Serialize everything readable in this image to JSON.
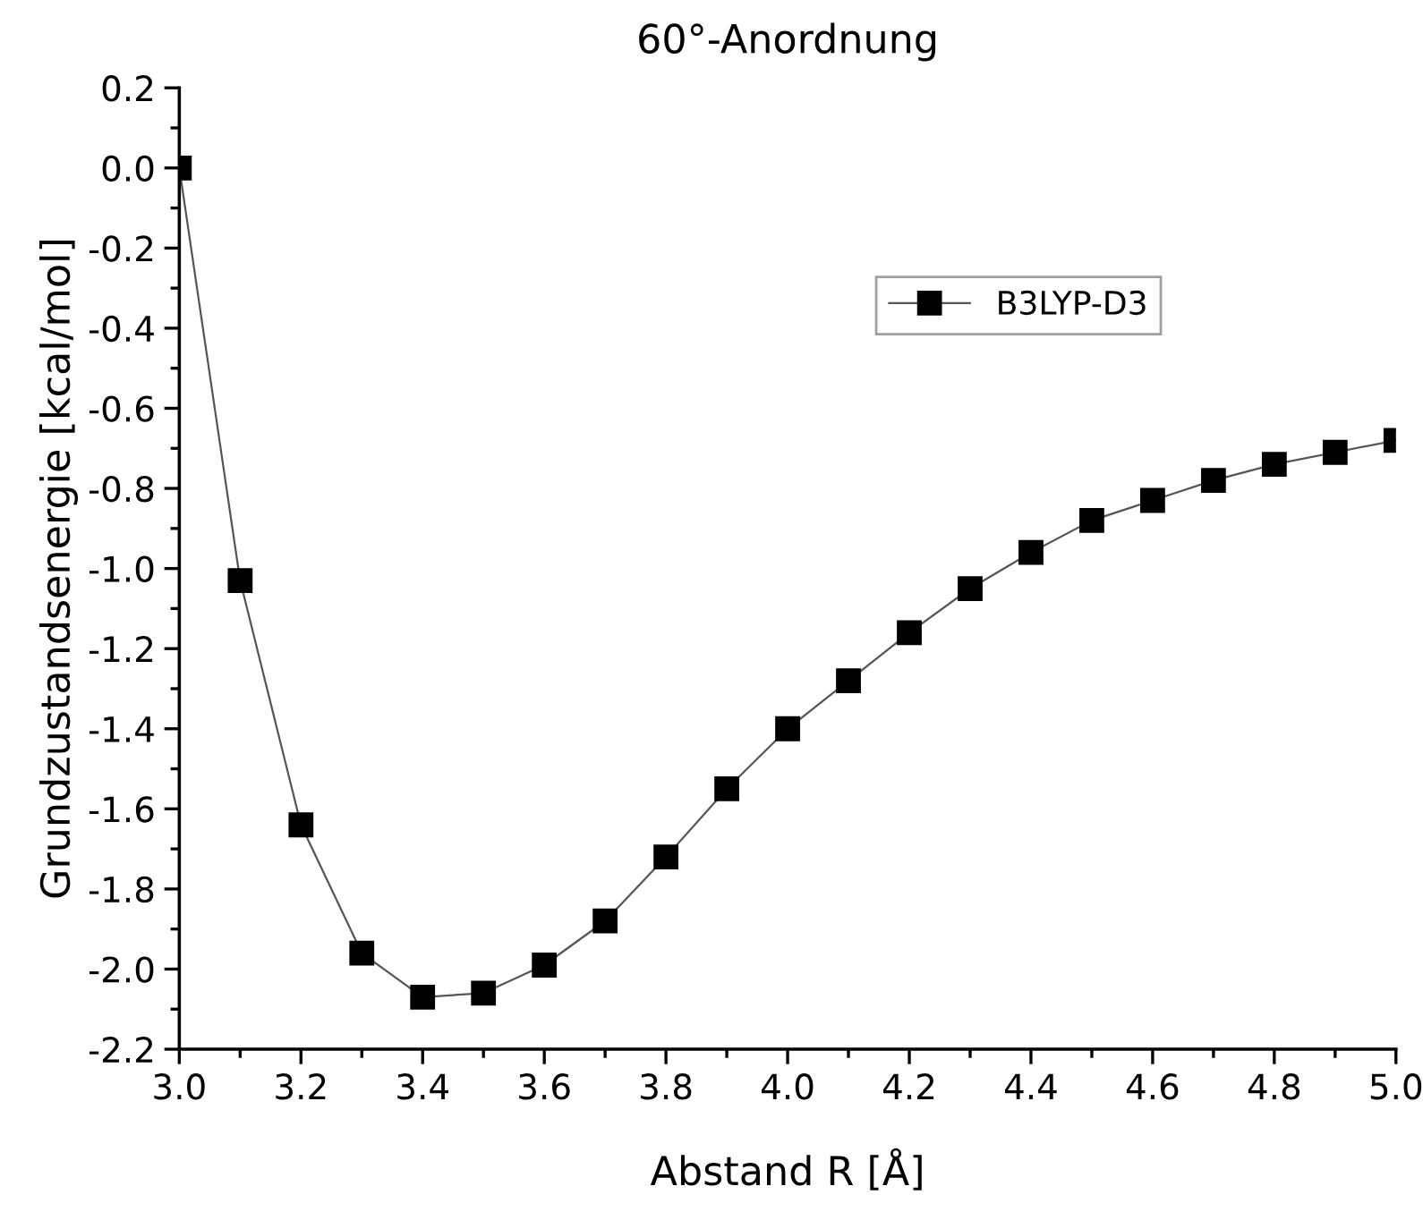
{
  "chart_data": {
    "type": "line",
    "title": "60°-Anordnung",
    "xlabel": "Abstand R [Å]",
    "ylabel": "Grundzustandsenergie [kcal/mol]",
    "x": [
      3.0,
      3.1,
      3.2,
      3.3,
      3.4,
      3.5,
      3.6,
      3.7,
      3.8,
      3.9,
      4.0,
      4.1,
      4.2,
      4.3,
      4.4,
      4.5,
      4.6,
      4.7,
      4.8,
      4.9,
      5.0
    ],
    "series": [
      {
        "name": "B3LYP-D3",
        "color": "#000000",
        "values": [
          0.0,
          -1.03,
          -1.64,
          -1.96,
          -2.07,
          -2.06,
          -1.99,
          -1.88,
          -1.72,
          -1.55,
          -1.4,
          -1.28,
          -1.16,
          -1.05,
          -0.96,
          -0.88,
          -0.83,
          -0.78,
          -0.74,
          -0.71,
          -0.68
        ]
      }
    ],
    "xlim": [
      3.0,
      5.0
    ],
    "xticks": [
      {
        "value": 3.0,
        "label": "3.0"
      },
      {
        "value": 3.2,
        "label": "3.2"
      },
      {
        "value": 3.4,
        "label": "3.4"
      },
      {
        "value": 3.6,
        "label": "3.6"
      },
      {
        "value": 3.8,
        "label": "3.8"
      },
      {
        "value": 4.0,
        "label": "4.0"
      },
      {
        "value": 4.2,
        "label": "4.2"
      },
      {
        "value": 4.4,
        "label": "4.4"
      },
      {
        "value": 4.6,
        "label": "4.6"
      },
      {
        "value": 4.8,
        "label": "4.8"
      },
      {
        "value": 5.0,
        "label": "5.0"
      }
    ],
    "ylim": [
      -2.2,
      0.2
    ],
    "yticks": [
      {
        "value": -2.2,
        "label": "-2.2"
      },
      {
        "value": -2.0,
        "label": "-2.0"
      },
      {
        "value": -1.8,
        "label": "-1.8"
      },
      {
        "value": -1.6,
        "label": "-1.6"
      },
      {
        "value": -1.4,
        "label": "-1.4"
      },
      {
        "value": -1.2,
        "label": "-1.2"
      },
      {
        "value": -1.0,
        "label": "-1.0"
      },
      {
        "value": -0.8,
        "label": "-0.8"
      },
      {
        "value": -0.6,
        "label": "-0.6"
      },
      {
        "value": -0.4,
        "label": "-0.4"
      },
      {
        "value": -0.2,
        "label": "-0.2"
      },
      {
        "value": 0.0,
        "label": "0.0"
      },
      {
        "value": 0.2,
        "label": "0.2"
      }
    ],
    "grid": false,
    "legend": "top right",
    "marker": "square",
    "line_style": "solid"
  }
}
